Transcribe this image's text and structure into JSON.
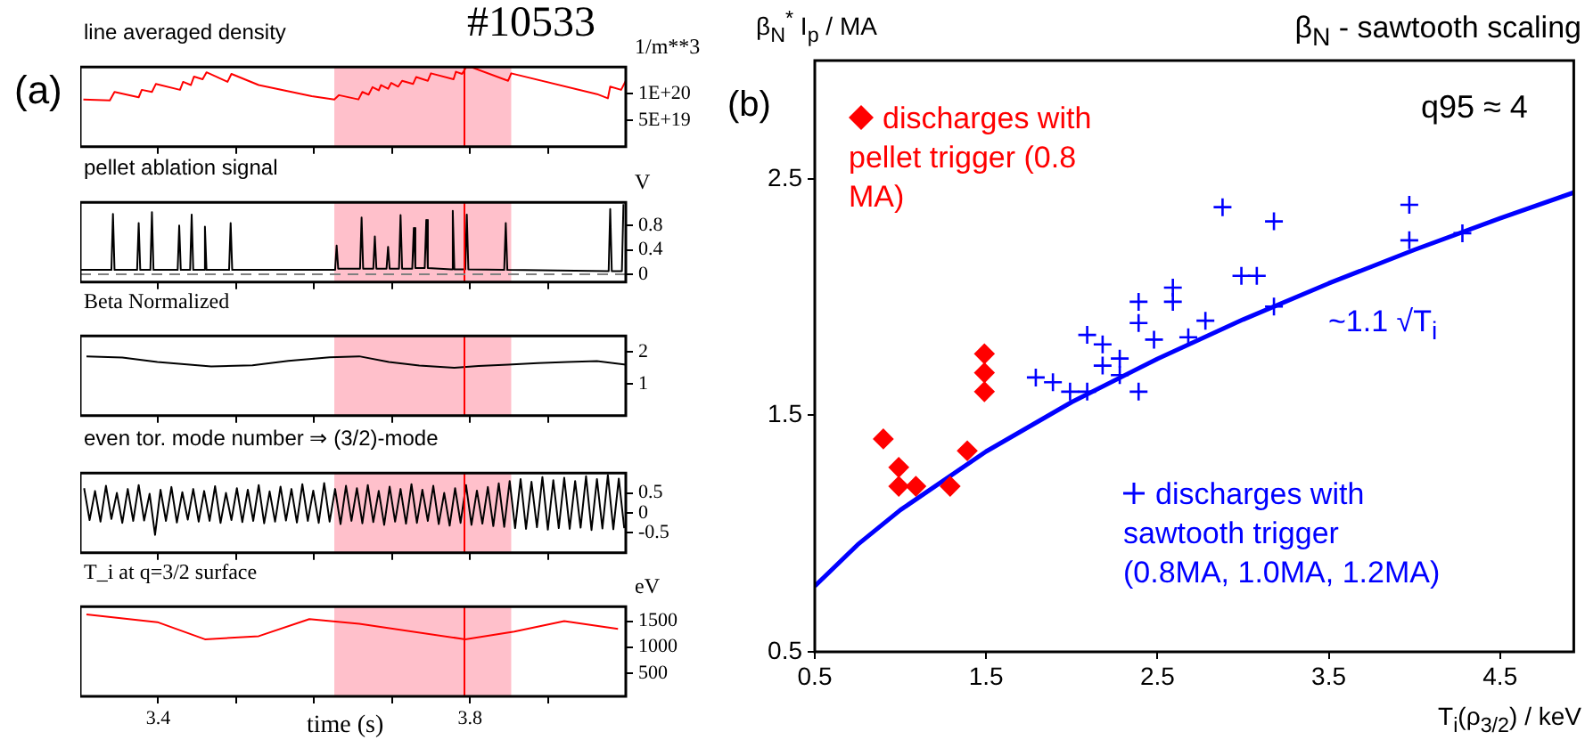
{
  "chart_data": [
    {
      "type": "line",
      "title": "line averaged density",
      "ylabel": "1/m**3",
      "annotations": [
        "(a)",
        "#10533"
      ],
      "xlim": [
        3.3,
        4.0
      ],
      "xticks": [
        {
          "value": 3.4,
          "label": null
        },
        {
          "value": 3.5,
          "label": null
        },
        {
          "value": 3.6,
          "label": null
        },
        {
          "value": 3.7,
          "label": null
        },
        {
          "value": 3.8,
          "label": null
        },
        {
          "value": 3.9,
          "label": null
        }
      ],
      "ylim": [
        0,
        1.5e+20
      ],
      "yticks": [
        {
          "value": 5e+19,
          "label": "5E+19"
        },
        {
          "value": 1e+20,
          "label": "1E+20"
        }
      ],
      "tick_labels": "y",
      "bands": [
        {
          "axis": "x",
          "from": 3.626,
          "to": 3.853,
          "color": "#ffc0cb"
        }
      ],
      "ref_lines": [
        {
          "axis": "x",
          "value": 3.793,
          "color": "#ff0000"
        }
      ],
      "series": [
        {
          "color": "#ff0000",
          "x": [
            3.304,
            3.338,
            3.344,
            3.375,
            3.379,
            3.392,
            3.397,
            3.428,
            3.432,
            3.442,
            3.446,
            3.457,
            3.462,
            3.489,
            3.494,
            3.529,
            3.597,
            3.626,
            3.632,
            3.657,
            3.662,
            3.67,
            3.675,
            3.683,
            3.686,
            3.695,
            3.699,
            3.708,
            3.713,
            3.727,
            3.731,
            3.746,
            3.75,
            3.779,
            3.782,
            3.79,
            3.795,
            3.803,
            3.849,
            3.853,
            3.963,
            3.977,
            3.98,
            3.994,
            4.0
          ],
          "values": [
            8.9e+19,
            8.7e+19,
            1.03e+20,
            9.3e+19,
            1.07e+20,
            1.03e+20,
            1.18e+20,
            1.07e+20,
            1.22e+20,
            1.16e+20,
            1.32e+20,
            1.27e+20,
            1.4e+20,
            1.22e+20,
            1.37e+20,
            1.16e+20,
            9.5e+19,
            8.9e+19,
            9.7e+19,
            8.9e+19,
            1.03e+20,
            9.8e+19,
            1.12e+20,
            1.06e+20,
            1.16e+20,
            1.09e+20,
            1.2e+20,
            1.13e+20,
            1.24e+20,
            1.18e+20,
            1.31e+20,
            1.24e+20,
            1.38e+20,
            1.27e+20,
            1.41e+20,
            1.37e+20,
            1.49e+20,
            1.49e+20,
            1.24e+20,
            1.38e+20,
            9.9e+19,
            9.1e+19,
            1.13e+20,
            1.07e+20,
            1.24e+20
          ]
        }
      ]
    },
    {
      "type": "line",
      "title": "pellet ablation signal",
      "ylabel": "V",
      "xlim": [
        3.3,
        4.0
      ],
      "xticks": [
        {
          "value": 3.4,
          "label": null
        },
        {
          "value": 3.5,
          "label": null
        },
        {
          "value": 3.6,
          "label": null
        },
        {
          "value": 3.7,
          "label": null
        },
        {
          "value": 3.8,
          "label": null
        },
        {
          "value": 3.9,
          "label": null
        }
      ],
      "ylim": [
        -0.13,
        1.18
      ],
      "yticks": [
        0,
        0.4,
        0.8
      ],
      "tick_labels": "y",
      "bands": [
        {
          "axis": "x",
          "from": 3.626,
          "to": 3.853,
          "color": "#ffc0cb"
        }
      ],
      "ref_lines": [
        {
          "axis": "x",
          "value": 3.793,
          "color": "#ff0000"
        },
        {
          "axis": "y",
          "value": 0,
          "color": "#808080",
          "line_style": "dashed"
        }
      ],
      "series": [
        {
          "color": "#000000",
          "x": [
            3.3,
            3.34,
            3.342,
            3.344,
            3.373,
            3.375,
            3.377,
            3.39,
            3.392,
            3.394,
            3.425,
            3.427,
            3.429,
            3.441,
            3.443,
            3.445,
            3.458,
            3.46,
            3.462,
            3.491,
            3.493,
            3.495,
            3.627,
            3.629,
            3.631,
            3.659,
            3.661,
            3.663,
            3.676,
            3.678,
            3.68,
            3.693,
            3.695,
            3.697,
            3.709,
            3.711,
            3.713,
            3.726,
            3.728,
            3.73,
            3.742,
            3.744,
            3.746,
            3.776,
            3.778,
            3.78,
            3.794,
            3.796,
            3.798,
            3.844,
            3.846,
            3.848,
            3.978,
            3.98,
            3.982,
            3.995,
            3.997
          ],
          "values": [
            0.07,
            0.07,
            0.99,
            0.07,
            0.07,
            0.84,
            0.07,
            0.07,
            1.02,
            0.07,
            0.07,
            0.8,
            0.07,
            0.07,
            0.98,
            0.07,
            0.07,
            0.78,
            0.07,
            0.07,
            0.84,
            0.07,
            0.07,
            0.47,
            0.09,
            0.09,
            0.93,
            0.09,
            0.09,
            0.62,
            0.09,
            0.09,
            0.45,
            0.09,
            0.09,
            0.97,
            0.09,
            0.09,
            0.76,
            0.1,
            0.1,
            0.89,
            0.1,
            0.08,
            1.04,
            0.08,
            0.08,
            0.98,
            0.08,
            0.07,
            0.84,
            0.07,
            0.05,
            1.07,
            0.05,
            0.05,
            1.15
          ]
        }
      ]
    },
    {
      "type": "line",
      "title": "Beta Normalized",
      "xlim": [
        3.3,
        4.0
      ],
      "xticks": [
        {
          "value": 3.4,
          "label": null
        },
        {
          "value": 3.5,
          "label": null
        },
        {
          "value": 3.6,
          "label": null
        },
        {
          "value": 3.7,
          "label": null
        },
        {
          "value": 3.8,
          "label": null
        },
        {
          "value": 3.9,
          "label": null
        }
      ],
      "ylim": [
        0,
        2.5
      ],
      "yticks": [
        1,
        2
      ],
      "tick_labels": "y",
      "bands": [
        {
          "axis": "x",
          "from": 3.626,
          "to": 3.853,
          "color": "#ffc0cb"
        }
      ],
      "ref_lines": [
        {
          "axis": "x",
          "value": 3.793,
          "color": "#ff0000"
        }
      ],
      "series": [
        {
          "color": "#000000",
          "x": [
            3.308,
            3.354,
            3.399,
            3.468,
            3.521,
            3.567,
            3.62,
            3.658,
            3.696,
            3.735,
            3.78,
            3.811,
            3.849,
            3.887,
            3.925,
            3.963,
            4.0
          ],
          "values": [
            1.86,
            1.82,
            1.68,
            1.54,
            1.58,
            1.72,
            1.83,
            1.86,
            1.68,
            1.57,
            1.5,
            1.56,
            1.6,
            1.65,
            1.68,
            1.71,
            1.6
          ]
        }
      ]
    },
    {
      "type": "line",
      "title": "even tor. mode number ⇒ (3/2)-mode",
      "xlim": [
        3.3,
        4.0
      ],
      "xticks": [
        {
          "value": 3.4,
          "label": null
        },
        {
          "value": 3.5,
          "label": null
        },
        {
          "value": 3.6,
          "label": null
        },
        {
          "value": 3.7,
          "label": null
        },
        {
          "value": 3.8,
          "label": null
        },
        {
          "value": 3.9,
          "label": null
        }
      ],
      "ylim": [
        -1,
        1
      ],
      "yticks": [
        -0.5,
        0,
        0.5
      ],
      "tick_labels": "y",
      "bands": [
        {
          "axis": "x",
          "from": 3.626,
          "to": 3.853,
          "color": "#ffc0cb"
        }
      ],
      "ref_lines": [
        {
          "axis": "x",
          "value": 3.793,
          "color": "#ff0000"
        }
      ],
      "series": [
        {
          "color": "#000000",
          "x": [
            3.305,
            3.312,
            3.319,
            3.326,
            3.333,
            3.34,
            3.347,
            3.354,
            3.361,
            3.368,
            3.375,
            3.382,
            3.389,
            3.396,
            3.403,
            3.41,
            3.417,
            3.424,
            3.431,
            3.438,
            3.445,
            3.452,
            3.459,
            3.466,
            3.473,
            3.48,
            3.487,
            3.494,
            3.501,
            3.508,
            3.515,
            3.522,
            3.529,
            3.536,
            3.543,
            3.55,
            3.557,
            3.564,
            3.571,
            3.578,
            3.585,
            3.592,
            3.599,
            3.606,
            3.613,
            3.62,
            3.627,
            3.634,
            3.641,
            3.648,
            3.655,
            3.662,
            3.669,
            3.676,
            3.683,
            3.69,
            3.697,
            3.704,
            3.711,
            3.718,
            3.725,
            3.732,
            3.739,
            3.746,
            3.753,
            3.76,
            3.767,
            3.774,
            3.781,
            3.788,
            3.795,
            3.802,
            3.809,
            3.816,
            3.823,
            3.83,
            3.837,
            3.844,
            3.851,
            3.858,
            3.865,
            3.872,
            3.879,
            3.886,
            3.893,
            3.9,
            3.907,
            3.914,
            3.921,
            3.928,
            3.935,
            3.942,
            3.949,
            3.956,
            3.963,
            3.97,
            3.977,
            3.984,
            3.991,
            3.998
          ],
          "values": [
            0.62,
            -0.18,
            0.55,
            -0.22,
            0.68,
            -0.15,
            0.5,
            -0.25,
            0.6,
            -0.2,
            0.7,
            -0.19,
            0.48,
            -0.55,
            0.58,
            -0.2,
            0.65,
            -0.24,
            0.52,
            -0.17,
            0.6,
            -0.22,
            0.55,
            -0.2,
            0.67,
            -0.25,
            0.5,
            -0.18,
            0.62,
            -0.23,
            0.58,
            -0.2,
            0.7,
            -0.26,
            0.54,
            -0.22,
            0.66,
            -0.19,
            0.6,
            -0.24,
            0.72,
            -0.2,
            0.56,
            -0.25,
            0.75,
            -0.22,
            0.6,
            -0.28,
            0.68,
            -0.2,
            0.62,
            -0.26,
            0.7,
            -0.23,
            0.55,
            -0.3,
            0.66,
            -0.22,
            0.6,
            -0.27,
            0.72,
            -0.25,
            0.58,
            -0.2,
            0.68,
            -0.28,
            0.5,
            -0.32,
            0.62,
            -0.25,
            0.7,
            -0.3,
            0.56,
            -0.27,
            0.65,
            -0.33,
            0.74,
            -0.35,
            0.8,
            -0.38,
            0.85,
            -0.4,
            0.78,
            -0.36,
            0.9,
            -0.42,
            0.82,
            -0.38,
            0.88,
            -0.4,
            0.8,
            -0.37,
            0.92,
            -0.43,
            0.85,
            -0.39,
            0.95,
            -0.41,
            0.86,
            -0.38
          ]
        }
      ]
    },
    {
      "type": "line",
      "title": "T_i at q=3/2 surface",
      "ylabel": "eV",
      "xlabel": "time  (s)",
      "xlim": [
        3.3,
        4.0
      ],
      "xticks": [
        {
          "value": 3.4,
          "label": "3.4"
        },
        {
          "value": 3.5,
          "label": null
        },
        {
          "value": 3.6,
          "label": null
        },
        {
          "value": 3.7,
          "label": null
        },
        {
          "value": 3.8,
          "label": "3.8"
        },
        {
          "value": 3.9,
          "label": null
        }
      ],
      "ylim": [
        50,
        1780
      ],
      "yticks": [
        500,
        1000,
        1500
      ],
      "bands": [
        {
          "axis": "x",
          "from": 3.626,
          "to": 3.853,
          "color": "#ffc0cb"
        }
      ],
      "ref_lines": [
        {
          "axis": "x",
          "value": 3.793,
          "color": "#ff0000"
        }
      ],
      "series": [
        {
          "color": "#ff0000",
          "x": [
            3.308,
            3.399,
            3.46,
            3.529,
            3.594,
            3.658,
            3.794,
            3.857,
            3.921,
            3.99
          ],
          "values": [
            1630,
            1480,
            1150,
            1210,
            1540,
            1450,
            1150,
            1300,
            1500,
            1350
          ]
        }
      ]
    },
    {
      "type": "scatter",
      "title": "β$_{N}$ - sawtooth scaling",
      "ylabel": "β$_{N}$$^{*}$ I$_{p}$ / MA",
      "xlabel": "T$_{i}$(ρ$_{3/2}$) / keV",
      "annotations": [
        "(b)",
        "q95 ≈ 4"
      ],
      "legend": "top left",
      "xlim": [
        0.5,
        4.93
      ],
      "xticks": [
        0.5,
        1.5,
        2.5,
        3.5,
        4.5
      ],
      "ylim": [
        0.5,
        3.0
      ],
      "yticks": [
        0.5,
        1.5,
        2.5
      ],
      "series": [
        {
          "name": "discharges with pellet trigger (0.8 MA)",
          "color": "#ff0000",
          "marker": "diamond",
          "x": [
            0.9,
            0.99,
            0.99,
            1.09,
            1.29,
            1.39,
            1.49,
            1.49,
            1.49
          ],
          "values": [
            1.4,
            1.28,
            1.2,
            1.2,
            1.2,
            1.35,
            1.76,
            1.68,
            1.6
          ]
        },
        {
          "name": "discharges with sawtooth trigger (0.8MA, 1.0MA, 1.2MA)",
          "color": "#0000ff",
          "marker": "cross",
          "x": [
            1.79,
            1.89,
            1.99,
            2.09,
            2.09,
            2.18,
            2.18,
            2.28,
            2.28,
            2.39,
            2.39,
            2.39,
            2.48,
            2.59,
            2.59,
            2.68,
            2.78,
            2.88,
            2.99,
            3.08,
            3.18,
            3.18,
            3.97,
            3.97,
            4.28
          ],
          "values": [
            1.66,
            1.64,
            1.6,
            1.84,
            1.6,
            1.8,
            1.71,
            1.74,
            1.67,
            1.98,
            1.89,
            1.6,
            1.82,
            2.04,
            1.98,
            1.83,
            1.9,
            2.38,
            2.09,
            2.09,
            2.32,
            1.96,
            2.39,
            2.24,
            2.27
          ]
        },
        {
          "name": "~1.1 √T$_{i}$",
          "type": "line",
          "color": "#0000ff",
          "x": [
            0.5,
            0.75,
            1,
            1.5,
            2,
            2.5,
            3,
            3.5,
            4,
            4.5,
            4.93
          ],
          "values": [
            0.778,
            0.953,
            1.1,
            1.347,
            1.556,
            1.739,
            1.905,
            2.058,
            2.2,
            2.333,
            2.442
          ]
        }
      ]
    }
  ]
}
